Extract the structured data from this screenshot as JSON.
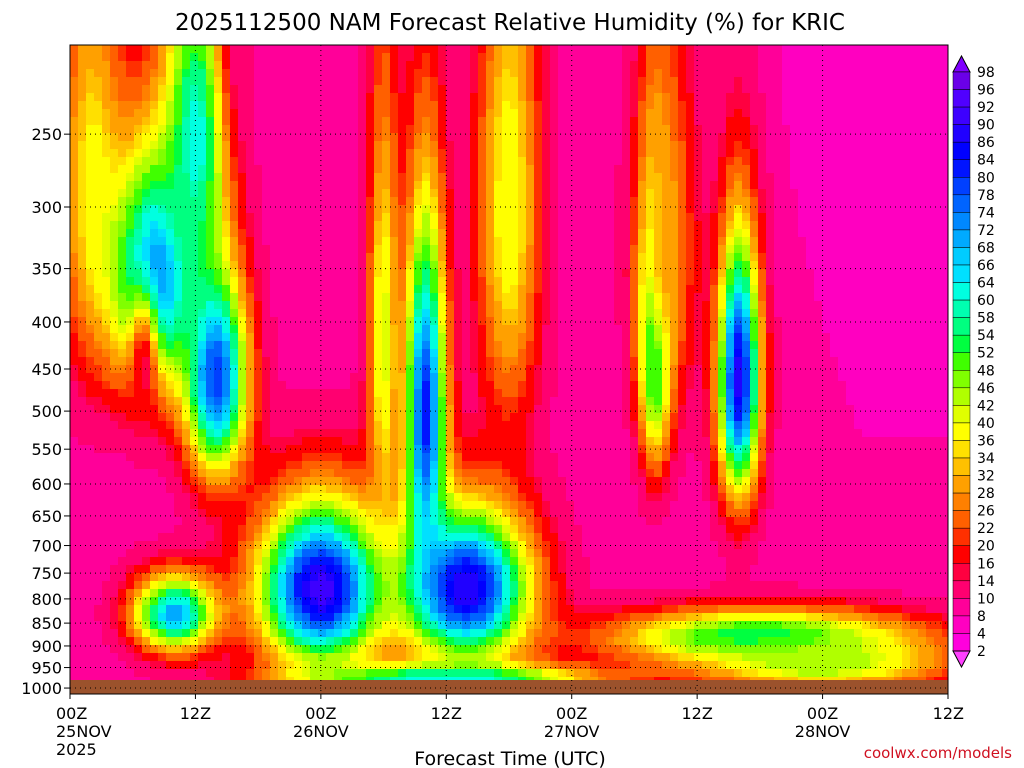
{
  "chart_data": {
    "type": "heatmap",
    "title": "2025112500 NAM Forecast Relative Humidity (%) for KRIC",
    "xlabel": "Forecast Time (UTC)",
    "ylabel": "",
    "x_ticks": [
      {
        "hour": 0,
        "line1": "00Z",
        "line2": "25NOV",
        "line3": "2025"
      },
      {
        "hour": 12,
        "line1": "12Z",
        "line2": "",
        "line3": ""
      },
      {
        "hour": 24,
        "line1": "00Z",
        "line2": "26NOV",
        "line3": ""
      },
      {
        "hour": 36,
        "line1": "12Z",
        "line2": "",
        "line3": ""
      },
      {
        "hour": 48,
        "line1": "00Z",
        "line2": "27NOV",
        "line3": ""
      },
      {
        "hour": 60,
        "line1": "12Z",
        "line2": "",
        "line3": ""
      },
      {
        "hour": 72,
        "line1": "00Z",
        "line2": "28NOV",
        "line3": ""
      },
      {
        "hour": 84,
        "line1": "12Z",
        "line2": "",
        "line3": ""
      }
    ],
    "xlim": [
      0,
      84
    ],
    "y_ticks": [
      "250",
      "300",
      "350",
      "400",
      "450",
      "500",
      "550",
      "600",
      "650",
      "700",
      "750",
      "800",
      "850",
      "900",
      "950",
      "1000"
    ],
    "y_scale": "log-pressure, inverted",
    "ylim": [
      1015,
      200
    ],
    "colorbar": {
      "labels": [
        98,
        96,
        92,
        90,
        86,
        84,
        80,
        78,
        74,
        72,
        68,
        66,
        64,
        60,
        58,
        54,
        52,
        48,
        46,
        42,
        40,
        36,
        34,
        32,
        28,
        26,
        22,
        20,
        16,
        14,
        10,
        8,
        4,
        2
      ],
      "colors": [
        "#8000ff",
        "#6a00e8",
        "#5000ff",
        "#3d00ff",
        "#2000ff",
        "#0000ff",
        "#0014ff",
        "#0040ff",
        "#0064ff",
        "#0088ff",
        "#00aaff",
        "#00ccff",
        "#00e0ff",
        "#00ffe0",
        "#00ffb0",
        "#00ff80",
        "#00ff40",
        "#40ff00",
        "#80ff00",
        "#b0ff00",
        "#e0ff00",
        "#ffff00",
        "#ffe000",
        "#ffc000",
        "#ffa000",
        "#ff8000",
        "#ff6000",
        "#ff3000",
        "#ff0000",
        "#ff0040",
        "#ff0070",
        "#ff0099",
        "#ff00c0",
        "#ff00dd",
        "#ff40ff"
      ]
    },
    "grid": true,
    "surface_color": "#9b522c",
    "rh_field": {
      "background": 8,
      "features": [
        {
          "t": 2,
          "p": 280,
          "st": 3,
          "sp": 160,
          "v": 36
        },
        {
          "t": 8,
          "p": 360,
          "st": 4,
          "sp": 110,
          "v": 78
        },
        {
          "t": 12,
          "p": 250,
          "st": 3,
          "sp": 100,
          "v": 62
        },
        {
          "t": 14,
          "p": 460,
          "st": 3,
          "sp": 120,
          "v": 80
        },
        {
          "t": 7,
          "p": 450,
          "st": 1.5,
          "sp": 80,
          "v": 14
        },
        {
          "t": 16,
          "p": 160,
          "st": 1.5,
          "sp": 90,
          "v": 10
        },
        {
          "t": 10,
          "p": 830,
          "st": 4,
          "sp": 80,
          "v": 70
        },
        {
          "t": 24,
          "p": 780,
          "st": 6,
          "sp": 160,
          "v": 92
        },
        {
          "t": 34,
          "p": 500,
          "st": 2,
          "sp": 220,
          "v": 82
        },
        {
          "t": 38,
          "p": 780,
          "st": 6,
          "sp": 150,
          "v": 90
        },
        {
          "t": 30,
          "p": 420,
          "st": 1.5,
          "sp": 230,
          "v": 42
        },
        {
          "t": 42,
          "p": 300,
          "st": 3,
          "sp": 200,
          "v": 40
        },
        {
          "t": 36,
          "p": 980,
          "st": 14,
          "sp": 40,
          "v": 64
        },
        {
          "t": 56,
          "p": 400,
          "st": 1.5,
          "sp": 140,
          "v": 86
        },
        {
          "t": 64,
          "p": 460,
          "st": 2,
          "sp": 150,
          "v": 88
        },
        {
          "t": 57,
          "p": 330,
          "st": 3,
          "sp": 160,
          "v": 30
        },
        {
          "t": 66,
          "p": 880,
          "st": 14,
          "sp": 60,
          "v": 58
        },
        {
          "t": 72,
          "p": 940,
          "st": 12,
          "sp": 70,
          "v": 46
        },
        {
          "t": 82,
          "p": 200,
          "st": 8,
          "sp": 60,
          "v": 6
        }
      ]
    }
  },
  "credit": "coolwx.com/models"
}
